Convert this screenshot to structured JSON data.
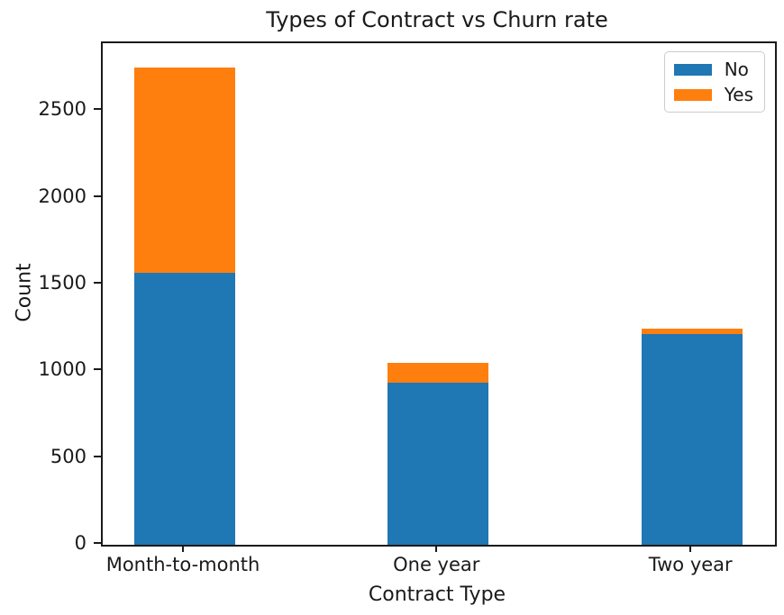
{
  "title": "Types of Contract vs Churn rate",
  "chart_data": {
    "type": "bar",
    "stacked": true,
    "title": "Types of Contract vs Churn rate",
    "xlabel": "Contract Type",
    "ylabel": "Count",
    "categories": [
      "Month-to-month",
      "One year",
      "Two year"
    ],
    "series": [
      {
        "name": "No",
        "color": "#1f77b4",
        "values": [
          1565,
          935,
          1215
        ]
      },
      {
        "name": "Yes",
        "color": "#ff7f0e",
        "values": [
          1185,
          115,
          30
        ]
      }
    ],
    "totals": [
      2750,
      1050,
      1245
    ],
    "ylim": [
      0,
      2890
    ],
    "yticks": [
      0,
      500,
      1000,
      1500,
      2000,
      2500
    ],
    "grid": false,
    "legend_position": "upper right",
    "legend_items": [
      {
        "label": "No",
        "color": "#1f77b4"
      },
      {
        "label": "Yes",
        "color": "#ff7f0e"
      }
    ]
  }
}
